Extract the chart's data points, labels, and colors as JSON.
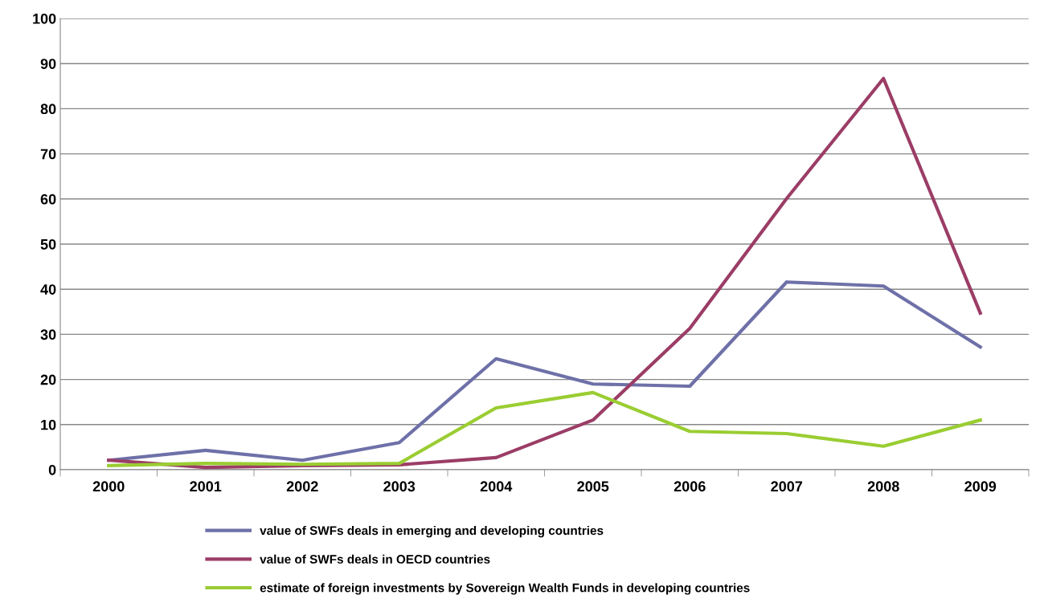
{
  "chart_data": {
    "type": "line",
    "categories": [
      "2000",
      "2001",
      "2002",
      "2003",
      "2004",
      "2005",
      "2006",
      "2007",
      "2008",
      "2009"
    ],
    "series": [
      {
        "name": "value of SWFs deals in emerging and developing countries",
        "color": "#6e70a8",
        "values": [
          2.1,
          4.3,
          2.1,
          6,
          24.6,
          19,
          18.5,
          41.6,
          40.7,
          27.2
        ]
      },
      {
        "name": "value of SWFs deals in OECD countries",
        "color": "#9b3d66",
        "values": [
          2.1,
          0.5,
          0.9,
          1.1,
          2.7,
          11,
          31.3,
          60.1,
          86.7,
          34.7
        ]
      },
      {
        "name": "estimate of foreign investments by Sovereign Wealth Funds in developing countries",
        "color": "#9acd32",
        "values": [
          0.9,
          1.4,
          1.2,
          1.4,
          13.7,
          17.1,
          8.5,
          8,
          5.2,
          11
        ]
      }
    ],
    "ylim": [
      0,
      100
    ],
    "yticks": [
      0,
      10,
      20,
      30,
      40,
      50,
      60,
      70,
      80,
      90,
      100
    ],
    "grid": "y",
    "legend": "bottom",
    "marker": "none",
    "line_style": "solid"
  }
}
